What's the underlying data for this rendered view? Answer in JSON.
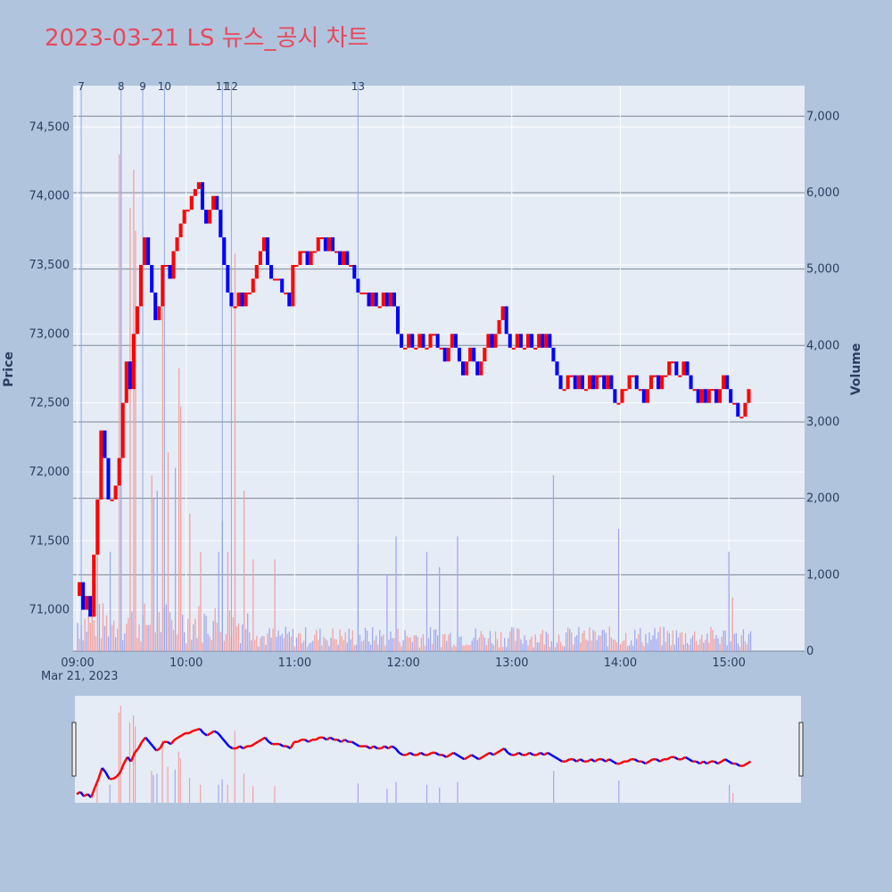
{
  "title": "2023-03-21 LS 뉴스_공시 차트",
  "chart_data": {
    "type": "candlestick",
    "date_label": "Mar 21, 2023",
    "x_ticks": [
      "09:00",
      "10:00",
      "11:00",
      "12:00",
      "13:00",
      "14:00",
      "15:00"
    ],
    "x_range_minutes": [
      0,
      390
    ],
    "y_label": "Price",
    "y_ticks": [
      71000,
      71500,
      72000,
      72500,
      73000,
      73500,
      74000,
      74500
    ],
    "y_tick_labels": [
      "71,000",
      "71,500",
      "72,000",
      "72,500",
      "73,000",
      "73,500",
      "74,000",
      "74,500"
    ],
    "y_range": [
      70700,
      74800
    ],
    "y2_label": "Volume",
    "y2_ticks": [
      0,
      1000,
      2000,
      3000,
      4000,
      5000,
      6000,
      7000
    ],
    "y2_tick_labels": [
      "0",
      "1,000",
      "2,000",
      "3,000",
      "4,000",
      "5,000",
      "6,000",
      "7,000"
    ],
    "y2_range": [
      0,
      7400
    ],
    "colors": {
      "up": "#ff0000",
      "down": "#0000ff",
      "up_volume": "#f4a0a0",
      "down_volume": "#a0a8f0",
      "news_line": "#8fa8e8"
    },
    "news_markers": [
      {
        "label": "7",
        "minute": 2
      },
      {
        "label": "8",
        "minute": 24
      },
      {
        "label": "9",
        "minute": 36
      },
      {
        "label": "10",
        "minute": 48
      },
      {
        "label": "11",
        "minute": 80
      },
      {
        "label": "12",
        "minute": 85
      },
      {
        "label": "13",
        "minute": 155
      }
    ],
    "price_path": [
      [
        0,
        71100
      ],
      [
        2,
        71200
      ],
      [
        4,
        71000
      ],
      [
        6,
        71100
      ],
      [
        8,
        70950
      ],
      [
        10,
        71400
      ],
      [
        12,
        71800
      ],
      [
        14,
        72300
      ],
      [
        16,
        72100
      ],
      [
        18,
        71800
      ],
      [
        20,
        71800
      ],
      [
        22,
        71900
      ],
      [
        24,
        72100
      ],
      [
        26,
        72500
      ],
      [
        28,
        72800
      ],
      [
        30,
        72600
      ],
      [
        32,
        73000
      ],
      [
        34,
        73200
      ],
      [
        36,
        73500
      ],
      [
        38,
        73700
      ],
      [
        40,
        73500
      ],
      [
        42,
        73300
      ],
      [
        44,
        73100
      ],
      [
        46,
        73200
      ],
      [
        48,
        73500
      ],
      [
        50,
        73500
      ],
      [
        52,
        73400
      ],
      [
        54,
        73600
      ],
      [
        56,
        73700
      ],
      [
        58,
        73800
      ],
      [
        60,
        73900
      ],
      [
        62,
        73900
      ],
      [
        64,
        74000
      ],
      [
        66,
        74050
      ],
      [
        68,
        74100
      ],
      [
        70,
        73900
      ],
      [
        72,
        73800
      ],
      [
        74,
        73900
      ],
      [
        76,
        74000
      ],
      [
        78,
        73900
      ],
      [
        80,
        73700
      ],
      [
        82,
        73500
      ],
      [
        84,
        73300
      ],
      [
        86,
        73200
      ],
      [
        88,
        73200
      ],
      [
        90,
        73300
      ],
      [
        92,
        73200
      ],
      [
        94,
        73300
      ],
      [
        96,
        73300
      ],
      [
        98,
        73400
      ],
      [
        100,
        73500
      ],
      [
        102,
        73600
      ],
      [
        104,
        73700
      ],
      [
        106,
        73500
      ],
      [
        108,
        73400
      ],
      [
        110,
        73400
      ],
      [
        112,
        73400
      ],
      [
        114,
        73300
      ],
      [
        116,
        73300
      ],
      [
        118,
        73200
      ],
      [
        120,
        73500
      ],
      [
        122,
        73500
      ],
      [
        124,
        73600
      ],
      [
        126,
        73600
      ],
      [
        128,
        73500
      ],
      [
        130,
        73600
      ],
      [
        132,
        73600
      ],
      [
        134,
        73700
      ],
      [
        136,
        73700
      ],
      [
        138,
        73600
      ],
      [
        140,
        73700
      ],
      [
        142,
        73600
      ],
      [
        144,
        73600
      ],
      [
        146,
        73500
      ],
      [
        148,
        73600
      ],
      [
        150,
        73500
      ],
      [
        152,
        73500
      ],
      [
        154,
        73400
      ],
      [
        156,
        73300
      ],
      [
        158,
        73300
      ],
      [
        160,
        73300
      ],
      [
        162,
        73200
      ],
      [
        164,
        73300
      ],
      [
        166,
        73200
      ],
      [
        168,
        73200
      ],
      [
        170,
        73300
      ],
      [
        172,
        73200
      ],
      [
        174,
        73300
      ],
      [
        176,
        73200
      ],
      [
        178,
        73000
      ],
      [
        180,
        72900
      ],
      [
        182,
        72900
      ],
      [
        184,
        73000
      ],
      [
        186,
        72900
      ],
      [
        188,
        72900
      ],
      [
        190,
        73000
      ],
      [
        192,
        72900
      ],
      [
        194,
        72900
      ],
      [
        196,
        73000
      ],
      [
        198,
        73000
      ],
      [
        200,
        72900
      ],
      [
        202,
        72900
      ],
      [
        204,
        72800
      ],
      [
        206,
        72900
      ],
      [
        208,
        73000
      ],
      [
        210,
        72900
      ],
      [
        212,
        72800
      ],
      [
        214,
        72700
      ],
      [
        216,
        72800
      ],
      [
        218,
        72900
      ],
      [
        220,
        72800
      ],
      [
        222,
        72700
      ],
      [
        224,
        72800
      ],
      [
        226,
        72900
      ],
      [
        228,
        73000
      ],
      [
        230,
        72900
      ],
      [
        232,
        73000
      ],
      [
        234,
        73100
      ],
      [
        236,
        73200
      ],
      [
        238,
        73000
      ],
      [
        240,
        72900
      ],
      [
        242,
        72900
      ],
      [
        244,
        73000
      ],
      [
        246,
        72900
      ],
      [
        248,
        72900
      ],
      [
        250,
        73000
      ],
      [
        252,
        72900
      ],
      [
        254,
        72900
      ],
      [
        256,
        73000
      ],
      [
        258,
        72900
      ],
      [
        260,
        73000
      ],
      [
        262,
        72900
      ],
      [
        264,
        72800
      ],
      [
        266,
        72700
      ],
      [
        268,
        72600
      ],
      [
        270,
        72600
      ],
      [
        272,
        72700
      ],
      [
        274,
        72700
      ],
      [
        276,
        72600
      ],
      [
        278,
        72700
      ],
      [
        280,
        72600
      ],
      [
        282,
        72600
      ],
      [
        284,
        72700
      ],
      [
        286,
        72600
      ],
      [
        288,
        72700
      ],
      [
        290,
        72700
      ],
      [
        292,
        72600
      ],
      [
        294,
        72700
      ],
      [
        296,
        72600
      ],
      [
        298,
        72500
      ],
      [
        300,
        72500
      ],
      [
        302,
        72600
      ],
      [
        304,
        72600
      ],
      [
        306,
        72700
      ],
      [
        308,
        72700
      ],
      [
        310,
        72600
      ],
      [
        312,
        72600
      ],
      [
        314,
        72500
      ],
      [
        316,
        72600
      ],
      [
        318,
        72700
      ],
      [
        320,
        72700
      ],
      [
        322,
        72600
      ],
      [
        324,
        72700
      ],
      [
        326,
        72700
      ],
      [
        328,
        72800
      ],
      [
        330,
        72800
      ],
      [
        332,
        72700
      ],
      [
        334,
        72700
      ],
      [
        336,
        72800
      ],
      [
        338,
        72700
      ],
      [
        340,
        72600
      ],
      [
        342,
        72600
      ],
      [
        344,
        72500
      ],
      [
        346,
        72600
      ],
      [
        348,
        72500
      ],
      [
        350,
        72600
      ],
      [
        352,
        72600
      ],
      [
        354,
        72500
      ],
      [
        356,
        72600
      ],
      [
        358,
        72700
      ],
      [
        360,
        72600
      ],
      [
        362,
        72500
      ],
      [
        364,
        72500
      ],
      [
        366,
        72400
      ],
      [
        368,
        72400
      ],
      [
        370,
        72500
      ],
      [
        372,
        72600
      ]
    ],
    "volume_spikes": [
      {
        "minute": 24,
        "volume": 7000,
        "dir": "up"
      },
      {
        "minute": 23,
        "volume": 6500,
        "dir": "up"
      },
      {
        "minute": 31,
        "volume": 6300,
        "dir": "up"
      },
      {
        "minute": 29,
        "volume": 5800,
        "dir": "up"
      },
      {
        "minute": 32,
        "volume": 5500,
        "dir": "up"
      },
      {
        "minute": 47,
        "volume": 4500,
        "dir": "up"
      },
      {
        "minute": 56,
        "volume": 3700,
        "dir": "up"
      },
      {
        "minute": 57,
        "volume": 3200,
        "dir": "up"
      },
      {
        "minute": 87,
        "volume": 5200,
        "dir": "up"
      },
      {
        "minute": 41,
        "volume": 2300,
        "dir": "up"
      },
      {
        "minute": 42,
        "volume": 2000,
        "dir": "down"
      },
      {
        "minute": 44,
        "volume": 2100,
        "dir": "down"
      },
      {
        "minute": 50,
        "volume": 2600,
        "dir": "up"
      },
      {
        "minute": 54,
        "volume": 2400,
        "dir": "down"
      },
      {
        "minute": 92,
        "volume": 2100,
        "dir": "up"
      },
      {
        "minute": 11,
        "volume": 1400,
        "dir": "up"
      },
      {
        "minute": 18,
        "volume": 1300,
        "dir": "down"
      },
      {
        "minute": 62,
        "volume": 1800,
        "dir": "up"
      },
      {
        "minute": 68,
        "volume": 1300,
        "dir": "up"
      },
      {
        "minute": 78,
        "volume": 1300,
        "dir": "down"
      },
      {
        "minute": 80,
        "volume": 1700,
        "dir": "down"
      },
      {
        "minute": 83,
        "volume": 1300,
        "dir": "up"
      },
      {
        "minute": 97,
        "volume": 1200,
        "dir": "up"
      },
      {
        "minute": 109,
        "volume": 1200,
        "dir": "up"
      },
      {
        "minute": 155,
        "volume": 1400,
        "dir": "down"
      },
      {
        "minute": 171,
        "volume": 1000,
        "dir": "down"
      },
      {
        "minute": 176,
        "volume": 1500,
        "dir": "down"
      },
      {
        "minute": 193,
        "volume": 1300,
        "dir": "down"
      },
      {
        "minute": 200,
        "volume": 1100,
        "dir": "down"
      },
      {
        "minute": 210,
        "volume": 1500,
        "dir": "down"
      },
      {
        "minute": 263,
        "volume": 2300,
        "dir": "down"
      },
      {
        "minute": 299,
        "volume": 1600,
        "dir": "down"
      },
      {
        "minute": 360,
        "volume": 1300,
        "dir": "down"
      },
      {
        "minute": 362,
        "volume": 700,
        "dir": "up"
      }
    ]
  }
}
